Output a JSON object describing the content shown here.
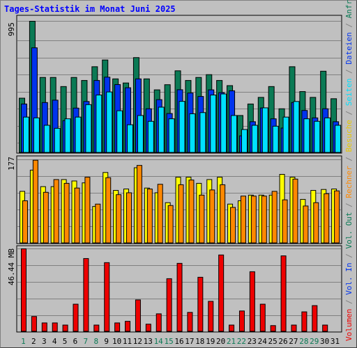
{
  "chart_data": {
    "type": "bar",
    "title": "Tages-Statistik im Monat Juni 2025",
    "categories": [
      "1",
      "2",
      "3",
      "4",
      "5",
      "6",
      "7",
      "8",
      "9",
      "10",
      "11",
      "12",
      "13",
      "14",
      "15",
      "16",
      "17",
      "18",
      "19",
      "20",
      "21",
      "22",
      "23",
      "24",
      "25",
      "26",
      "27",
      "28",
      "29",
      "30",
      "31"
    ],
    "weekend_days": [
      "1",
      "7",
      "8",
      "14",
      "15",
      "21",
      "22",
      "28",
      "29"
    ],
    "panels": [
      {
        "id": "top",
        "ymax_label": "995",
        "ylim": [
          0,
          995
        ],
        "series": [
          {
            "name": "Anfragen",
            "color": "#0b7a55",
            "values": [
              413,
              995,
              570,
              570,
              501,
              570,
              547,
              651,
              702,
              559,
              528,
              720,
              559,
              476,
              515,
              620,
              547,
              570,
              591,
              547,
              508,
              282,
              369,
              419,
              501,
              333,
              651,
              463,
              419,
              617,
              409
            ]
          },
          {
            "name": "Dateien",
            "color": "#0033ee",
            "values": [
              369,
              794,
              380,
              398,
              243,
              338,
              388,
              547,
              572,
              516,
              492,
              559,
              333,
              402,
              297,
              477,
              452,
              426,
              476,
              455,
              469,
              128,
              235,
              339,
              257,
              187,
              380,
              320,
              264,
              333,
              235
            ]
          },
          {
            "name": "Seiten",
            "color": "#00e0ff",
            "values": [
              270,
              264,
              208,
              185,
              257,
              270,
              364,
              437,
              460,
              318,
              212,
              282,
              238,
              345,
              257,
              389,
              295,
              304,
              437,
              445,
              282,
              176,
              208,
              340,
              201,
              270,
              388,
              257,
              238,
              264,
              208
            ]
          }
        ]
      },
      {
        "id": "middle",
        "ymax_label": "177",
        "ylim": [
          0,
          177
        ],
        "series": [
          {
            "name": "Besuche",
            "color": "#ffff00",
            "values": [
              110,
              155,
              120,
              120,
              135,
              132,
              128,
              78,
              150,
              112,
              115,
              160,
              117,
              107,
              86,
              140,
              140,
              127,
              135,
              140,
              83,
              90,
              102,
              102,
              102,
              146,
              140,
              93,
              112,
              114,
              115
            ]
          },
          {
            "name": "Rechner",
            "color": "#ff8800",
            "values": [
              90,
              176,
              108,
              135,
              127,
              117,
              140,
              83,
              139,
              103,
              107,
              165,
              115,
              125,
              80,
              124,
              134,
              102,
              113,
              124,
              76,
              100,
              100,
              100,
              110,
              92,
              136,
              79,
              86,
              105,
              111
            ]
          }
        ]
      },
      {
        "id": "bottom",
        "ymax_label": "46.44 MB",
        "ylim": [
          0,
          46.44
        ],
        "series": [
          {
            "name": "Volumen",
            "color": "#ee0000",
            "values": [
              46.44,
              8.5,
              4.9,
              4.9,
              3.7,
              15.4,
              41.0,
              3.7,
              38.7,
              4.9,
              5.8,
              17.8,
              4.2,
              10.0,
              29.7,
              38.3,
              10.8,
              30.5,
              17.0,
              43.0,
              3.7,
              11.6,
              33.6,
              15.4,
              3.4,
              42.5,
              3.7,
              11.1,
              14.6,
              3.7,
              0
            ]
          }
        ]
      }
    ],
    "right_legend": [
      {
        "text": "Volumen",
        "color": "#ee0000"
      },
      {
        "text": " / ",
        "color": "#808080"
      },
      {
        "text": "Vol. In",
        "color": "#0033ee"
      },
      {
        "text": " / ",
        "color": "#808080"
      },
      {
        "text": "Vol. Out",
        "color": "#0b7a55"
      },
      {
        "text": " / ",
        "color": "#808080"
      },
      {
        "text": "Rechner",
        "color": "#ff8800"
      },
      {
        "text": " / ",
        "color": "#808080"
      },
      {
        "text": "Besuche",
        "color": "#e8c800"
      },
      {
        "text": " / ",
        "color": "#808080"
      },
      {
        "text": "Seiten",
        "color": "#00e0ff"
      },
      {
        "text": " / ",
        "color": "#808080"
      },
      {
        "text": "Dateien",
        "color": "#0033ee"
      },
      {
        "text": " / ",
        "color": "#808080"
      },
      {
        "text": "Anfragen",
        "color": "#0b7a55"
      }
    ],
    "tick_colors": {
      "weekday": "#000000",
      "weekend": "#0b7a55"
    },
    "grid": true
  }
}
